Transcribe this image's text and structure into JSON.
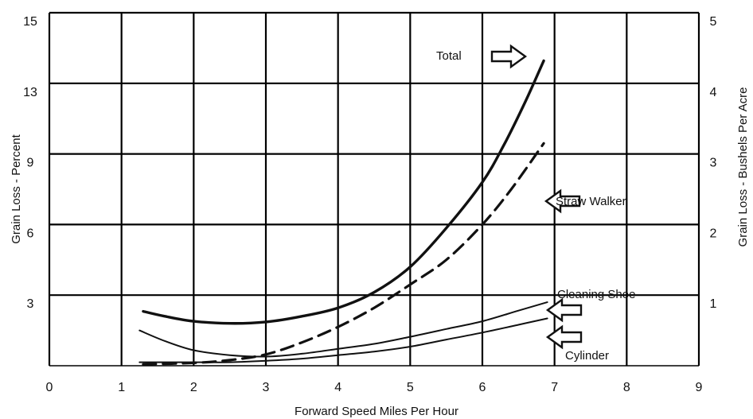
{
  "chart_data": {
    "type": "line",
    "xlabel": "Forward Speed Miles Per Hour",
    "ylabel_left": "Grain Loss - Percent",
    "ylabel_right": "Grain Loss - Bushels Per Acre",
    "xlim": [
      0,
      9
    ],
    "ylim_right": [
      0,
      5
    ],
    "x_ticks": [
      "0",
      "1",
      "2",
      "3",
      "4",
      "5",
      "6",
      "7",
      "8",
      "9"
    ],
    "y_ticks_left": [
      {
        "label": "3",
        "value": 1
      },
      {
        "label": "6",
        "value": 2
      },
      {
        "label": "9",
        "value": 3
      },
      {
        "label": "13",
        "value": 4
      },
      {
        "label": "15",
        "value": 5
      }
    ],
    "y_ticks_right": [
      "1",
      "2",
      "3",
      "4",
      "5"
    ],
    "grid": true,
    "series": [
      {
        "name": "Total",
        "style": "solid-thick",
        "x": [
          1.3,
          1.6,
          2.0,
          2.5,
          3.0,
          3.5,
          4.0,
          4.5,
          5.0,
          5.5,
          6.0,
          6.3,
          6.6,
          6.85
        ],
        "y": [
          0.77,
          0.7,
          0.63,
          0.6,
          0.62,
          0.7,
          0.82,
          1.04,
          1.4,
          1.95,
          2.6,
          3.13,
          3.75,
          4.32
        ]
      },
      {
        "name": "Straw Walker",
        "style": "dashed",
        "x": [
          1.3,
          2.0,
          2.5,
          3.0,
          3.5,
          4.0,
          4.5,
          5.0,
          5.5,
          6.0,
          6.4,
          6.85
        ],
        "y": [
          0.02,
          0.04,
          0.08,
          0.16,
          0.33,
          0.55,
          0.82,
          1.15,
          1.5,
          2.0,
          2.5,
          3.15
        ]
      },
      {
        "name": "Cleaning Shoe",
        "style": "solid-thin",
        "x": [
          1.25,
          1.6,
          2.0,
          2.5,
          3.0,
          3.5,
          4.0,
          4.5,
          5.0,
          5.5,
          6.0,
          6.5,
          6.9
        ],
        "y": [
          0.5,
          0.35,
          0.22,
          0.15,
          0.13,
          0.17,
          0.24,
          0.31,
          0.41,
          0.52,
          0.63,
          0.78,
          0.9
        ]
      },
      {
        "name": "Cylinder",
        "style": "solid-thin",
        "x": [
          1.25,
          2.0,
          2.5,
          3.0,
          3.5,
          4.0,
          4.5,
          5.0,
          5.5,
          6.0,
          6.5,
          6.9
        ],
        "y": [
          0.05,
          0.05,
          0.05,
          0.07,
          0.1,
          0.15,
          0.2,
          0.27,
          0.37,
          0.47,
          0.58,
          0.67
        ]
      }
    ],
    "annotations": [
      {
        "label": "Total",
        "arrow": "right",
        "series": "Total"
      },
      {
        "label": "Straw Walker",
        "arrow": "left",
        "series": "Straw Walker"
      },
      {
        "label": "Cleaning Shoe",
        "arrow": "left",
        "series": "Cleaning Shoe"
      },
      {
        "label": "Cylinder",
        "arrow": "left",
        "series": "Cylinder"
      }
    ],
    "colors": {
      "line": "#111111",
      "grid": "#000000",
      "background": "#ffffff"
    }
  }
}
